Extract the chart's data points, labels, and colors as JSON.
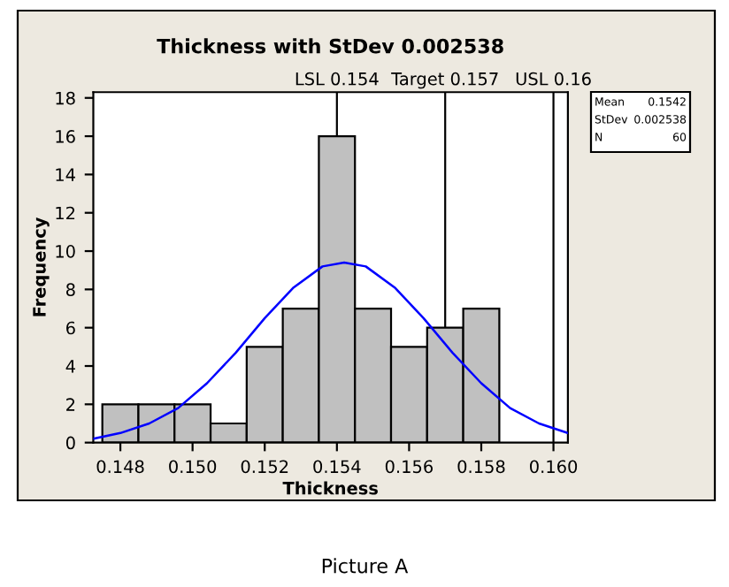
{
  "chart_data": {
    "type": "histogram",
    "title": "Thickness with StDev 0.002538",
    "xlabel": "Thickness",
    "ylabel": "Frequency",
    "bins": [
      0.1475,
      0.1485,
      0.1495,
      0.1505,
      0.1515,
      0.1525,
      0.1535,
      0.1545,
      0.1555,
      0.1565,
      0.1575,
      0.1585
    ],
    "values": [
      2,
      2,
      2,
      1,
      5,
      7,
      16,
      7,
      5,
      6,
      7
    ],
    "color": "#c0c0c0",
    "series": [
      {
        "type": "line",
        "color": "#0000ff",
        "x": [
          0.14725,
          0.148,
          0.1488,
          0.1496,
          0.1504,
          0.1512,
          0.152,
          0.1528,
          0.1536,
          0.1542,
          0.1548,
          0.1556,
          0.1564,
          0.1572,
          0.158,
          0.1588,
          0.1596,
          0.1604
        ],
        "values": [
          0.2,
          0.5,
          1.0,
          1.8,
          3.1,
          4.7,
          6.5,
          8.1,
          9.2,
          9.4,
          9.2,
          8.1,
          6.5,
          4.7,
          3.1,
          1.8,
          1.0,
          0.5
        ]
      }
    ],
    "xlim": [
      0.14725,
      0.1604
    ],
    "ylim": [
      0,
      18.3
    ],
    "xticks": [
      {
        "value": 0.148,
        "label": "0.148"
      },
      {
        "value": 0.15,
        "label": "0.150"
      },
      {
        "value": 0.152,
        "label": "0.152"
      },
      {
        "value": 0.154,
        "label": "0.154"
      },
      {
        "value": 0.156,
        "label": "0.156"
      },
      {
        "value": 0.158,
        "label": "0.158"
      },
      {
        "value": 0.16,
        "label": "0.160"
      }
    ],
    "yticks": [
      0,
      2,
      4,
      6,
      8,
      10,
      12,
      14,
      16,
      18
    ],
    "ref_lines": [
      {
        "axis": "x",
        "value": 0.154,
        "label": "LSL 0.154",
        "color": "#000000"
      },
      {
        "axis": "x",
        "value": 0.157,
        "label": "Target 0.157",
        "color": "#000000"
      },
      {
        "axis": "x",
        "value": 0.16,
        "label": "USL 0.16",
        "color": "#000000"
      }
    ],
    "annotations": [
      "Mean",
      "0.1542",
      "StDev",
      "0.002538",
      "N",
      "60",
      "Picture A"
    ],
    "grid": false,
    "legend": false
  }
}
